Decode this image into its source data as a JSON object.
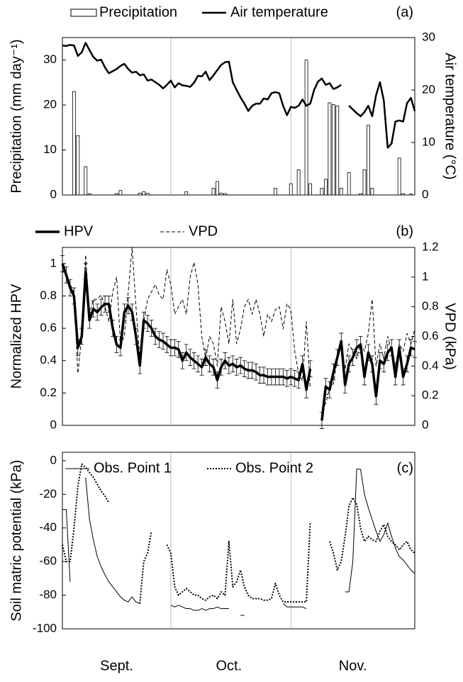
{
  "chart_data": [
    {
      "type": "line",
      "panel_label": "(a)",
      "ylabel": "Precipitation (mm day⁻¹)",
      "y2label": "Air temperature (°C)",
      "xlim": [
        0,
        91
      ],
      "xgrid": [
        28,
        59
      ],
      "ylim": [
        0,
        35
      ],
      "yticks": [
        0,
        10,
        20,
        30
      ],
      "y2lim": [
        0,
        30
      ],
      "y2ticks": [
        0,
        10,
        20,
        30
      ],
      "x": [
        0,
        1,
        2,
        3,
        4,
        5,
        6,
        7,
        8,
        9,
        10,
        11,
        12,
        13,
        14,
        15,
        16,
        17,
        18,
        19,
        20,
        21,
        22,
        23,
        24,
        25,
        26,
        27,
        28,
        29,
        30,
        31,
        32,
        33,
        34,
        35,
        36,
        37,
        38,
        39,
        40,
        41,
        42,
        43,
        44,
        45,
        46,
        47,
        48,
        49,
        50,
        51,
        52,
        53,
        54,
        55,
        56,
        57,
        58,
        59,
        60,
        61,
        62,
        63,
        64,
        65,
        66,
        67,
        68,
        69,
        70,
        71,
        72,
        73,
        74,
        75,
        76,
        77,
        78,
        79,
        80,
        81,
        82,
        83,
        84,
        85,
        86,
        87,
        88,
        89,
        90,
        91
      ],
      "series": [
        {
          "name": "Precipitation",
          "type": "bar",
          "color": "#000000",
          "fill": "#ffffff",
          "x": [
            3,
            4,
            6,
            7,
            14,
            15,
            20,
            21,
            22,
            32,
            39,
            40,
            41,
            42,
            55,
            59,
            61,
            63,
            64,
            67,
            68,
            69,
            70,
            71,
            72,
            74,
            77,
            78,
            79,
            80,
            87,
            88,
            90
          ],
          "values": [
            23,
            13.2,
            6.3,
            0.3,
            0.3,
            1,
            0.4,
            0.7,
            0.4,
            0.7,
            1.5,
            3,
            0.4,
            0.3,
            1.5,
            2.5,
            5.6,
            30,
            2.5,
            1.5,
            3.5,
            20.5,
            20.1,
            19.8,
            1.5,
            5,
            0.3,
            5.6,
            15.5,
            1.5,
            8.2,
            0.3,
            0.2
          ]
        },
        {
          "name": "Air temperature",
          "type": "line",
          "axis": "y2",
          "color": "#000000",
          "width": 2.5,
          "dash": "solid",
          "values": [
            28.5,
            28.4,
            28.6,
            28.5,
            26.5,
            27.2,
            29,
            27.6,
            26.3,
            25.6,
            25.8,
            24.3,
            23.2,
            23.6,
            24.0,
            24.6,
            25.0,
            24.0,
            23.3,
            23.5,
            22.8,
            23.0,
            21.8,
            22.0,
            21.5,
            21.0,
            20.3,
            21.0,
            21.8,
            20.5,
            21.3,
            20.9,
            20.8,
            20.6,
            21.4,
            22.7,
            22.6,
            23.5,
            21.9,
            22.8,
            23.8,
            24.8,
            25.3,
            25.4,
            21.5,
            20.0,
            18.6,
            17.4,
            16.0,
            17.0,
            17.4,
            17.4,
            18.4,
            18.2,
            19.4,
            19.6,
            19.4,
            17.0,
            15.2,
            16.8,
            16.6,
            17.0,
            18.2,
            17.0,
            17.4,
            20.0,
            21.6,
            22.2,
            21.0,
            21.3,
            20.2,
            20.5,
            21.0,
            null,
            17.0,
            16.3,
            15.6,
            15.0,
            15.8,
            17.0,
            15.0,
            19.0,
            21.5,
            18.0,
            9.0,
            9.8,
            14.0,
            14.2,
            14.0,
            17.5,
            18.5,
            16.0
          ]
        }
      ]
    },
    {
      "type": "line",
      "panel_label": "(b)",
      "ylabel": "Normalized HPV",
      "y2label": "VPD (kPa)",
      "xlim": [
        0,
        91
      ],
      "xgrid": [
        28,
        59
      ],
      "ylim": [
        0,
        1.1
      ],
      "yticks": [
        0,
        0.2,
        0.4,
        0.6,
        0.8,
        1
      ],
      "y2lim": [
        0,
        1.2
      ],
      "y2ticks": [
        0,
        0.2,
        0.4,
        0.6,
        0.8,
        1,
        1.2
      ],
      "x": [
        0,
        1,
        2,
        3,
        4,
        5,
        6,
        7,
        8,
        9,
        10,
        11,
        12,
        13,
        14,
        15,
        16,
        17,
        18,
        19,
        20,
        21,
        22,
        23,
        24,
        25,
        26,
        27,
        28,
        29,
        30,
        31,
        32,
        33,
        34,
        35,
        36,
        37,
        38,
        39,
        40,
        41,
        42,
        43,
        44,
        45,
        46,
        47,
        48,
        49,
        50,
        51,
        52,
        53,
        54,
        55,
        56,
        57,
        58,
        59,
        60,
        61,
        62,
        63,
        64,
        65,
        66,
        67,
        68,
        69,
        70,
        71,
        72,
        73,
        74,
        75,
        76,
        77,
        78,
        79,
        80,
        81,
        82,
        83,
        84,
        85,
        86,
        87,
        88,
        89,
        90,
        91
      ],
      "series": [
        {
          "name": "HPV",
          "type": "line",
          "color": "#000000",
          "width": 3.5,
          "dash": "solid",
          "values": [
            1.0,
            0.93,
            0.85,
            0.8,
            0.48,
            0.55,
            0.95,
            0.65,
            0.72,
            0.7,
            0.73,
            0.75,
            0.75,
            0.6,
            0.5,
            0.48,
            0.7,
            0.74,
            0.7,
            0.55,
            0.37,
            0.65,
            0.63,
            0.6,
            0.55,
            0.53,
            0.52,
            0.5,
            0.48,
            0.48,
            0.47,
            0.4,
            0.45,
            0.42,
            0.4,
            0.38,
            0.36,
            0.42,
            0.38,
            0.36,
            0.28,
            0.36,
            0.4,
            0.37,
            0.38,
            0.36,
            0.37,
            0.35,
            0.34,
            0.34,
            0.33,
            0.31,
            0.31,
            0.3,
            0.3,
            0.3,
            0.3,
            0.3,
            0.29,
            0.3,
            0.29,
            0.28,
            0.38,
            0.22,
            0.35,
            null,
            null,
            0.03,
            0.24,
            0.22,
            0.33,
            0.42,
            0.52,
            0.25,
            0.38,
            0.42,
            0.48,
            0.5,
            0.3,
            0.45,
            0.38,
            0.18,
            0.4,
            0.38,
            0.45,
            0.48,
            0.3,
            0.48,
            0.3,
            0.38,
            0.48,
            0.47
          ],
          "errors": [
            0.05,
            0.05,
            0.05,
            0.05,
            0.05,
            0.05,
            0.05,
            0.05,
            0.05,
            0.05,
            0.05,
            0.05,
            0.05,
            0.05,
            0.05,
            0.05,
            0.05,
            0.05,
            0.05,
            0.05,
            0.05,
            0.05,
            0.05,
            0.05,
            0.05,
            0.05,
            0.05,
            0.05,
            0.05,
            0.05,
            0.05,
            0.05,
            0.05,
            0.05,
            0.05,
            0.05,
            0.05,
            0.05,
            0.05,
            0.05,
            0.05,
            0.05,
            0.05,
            0.05,
            0.05,
            0.05,
            0.05,
            0.05,
            0.05,
            0.05,
            0.05,
            0.05,
            0.05,
            0.05,
            0.05,
            0.05,
            0.05,
            0.05,
            0.05,
            0.05,
            0.05,
            0.05,
            0.05,
            0.05,
            0.05,
            null,
            null,
            0.05,
            0.05,
            0.05,
            0.05,
            0.05,
            0.05,
            0.05,
            0.05,
            0.05,
            0.05,
            0.05,
            0.05,
            0.05,
            0.05,
            0.05,
            0.05,
            0.05,
            0.05,
            0.05,
            0.05,
            0.05,
            0.05,
            0.05,
            0.05,
            0.05
          ]
        },
        {
          "name": "VPD",
          "type": "line",
          "axis": "y2",
          "color": "#000000",
          "width": 1,
          "dash": "dashed",
          "values": [
            1.05,
            1.0,
            0.95,
            0.9,
            0.35,
            0.6,
            1.15,
            0.75,
            0.85,
            0.85,
            0.88,
            0.8,
            0.7,
            0.9,
            1.0,
            0.55,
            0.6,
            0.9,
            1.2,
            0.8,
            0.45,
            0.7,
            0.85,
            0.9,
            0.95,
            0.88,
            0.85,
            1.05,
            0.95,
            0.75,
            0.8,
            0.85,
            0.75,
            1.0,
            1.1,
            0.95,
            0.6,
            0.45,
            0.6,
            0.55,
            0.4,
            0.8,
            0.7,
            0.55,
            0.85,
            0.55,
            0.65,
            0.8,
            0.85,
            0.75,
            0.85,
            0.75,
            0.6,
            0.75,
            0.7,
            0.78,
            0.8,
            0.65,
            0.82,
            0.78,
            0.5,
            0.35,
            0.3,
            0.7,
            0.25,
            null,
            null,
            0.1,
            0.15,
            0.25,
            0.28,
            0.45,
            0.55,
            0.38,
            0.55,
            0.5,
            0.45,
            0.55,
            0.5,
            0.62,
            0.85,
            0.4,
            0.55,
            0.45,
            0.6,
            0.5,
            0.4,
            0.55,
            0.5,
            0.62,
            0.55,
            0.65
          ]
        }
      ]
    },
    {
      "type": "line",
      "panel_label": "(c)",
      "ylabel": "Soil matric potential (kPa)",
      "xlim": [
        0,
        91
      ],
      "xgrid": [
        28,
        59
      ],
      "ylim": [
        -100,
        5
      ],
      "yticks": [
        -100,
        -80,
        -60,
        -40,
        -20,
        0
      ],
      "xticks": [
        {
          "value": 14,
          "label": "Sept."
        },
        {
          "value": 43,
          "label": "Oct."
        },
        {
          "value": 75,
          "label": "Nov."
        }
      ],
      "x": [
        0,
        1,
        2,
        3,
        4,
        5,
        6,
        7,
        8,
        9,
        10,
        11,
        12,
        13,
        14,
        15,
        16,
        17,
        18,
        19,
        20,
        21,
        22,
        23,
        24,
        25,
        26,
        27,
        28,
        29,
        30,
        31,
        32,
        33,
        34,
        35,
        36,
        37,
        38,
        39,
        40,
        41,
        42,
        43,
        44,
        45,
        46,
        47,
        48,
        49,
        50,
        51,
        52,
        53,
        54,
        55,
        56,
        57,
        58,
        59,
        60,
        61,
        62,
        63,
        64,
        65,
        66,
        67,
        68,
        69,
        70,
        71,
        72,
        73,
        74,
        75,
        76,
        77,
        78,
        79,
        80,
        81,
        82,
        83,
        84,
        85,
        86,
        87,
        88,
        89,
        90,
        91
      ],
      "series": [
        {
          "name": "Obs. Point 1",
          "type": "line",
          "color": "#000000",
          "width": 1,
          "dash": "solid",
          "values": [
            -29,
            -29,
            -72,
            null,
            null,
            null,
            -10,
            -35,
            -47,
            -57,
            -63,
            -68,
            -72,
            -75,
            -78,
            -81,
            -83,
            -84,
            -81,
            -84,
            -85,
            null,
            null,
            null,
            null,
            null,
            null,
            null,
            -86,
            -87,
            -86,
            -87,
            -88,
            -88,
            -89,
            -89,
            -88,
            -89,
            -88,
            -88,
            -87,
            -88,
            -88,
            -88,
            null,
            null,
            -92,
            -92,
            null,
            null,
            null,
            null,
            null,
            null,
            null,
            null,
            null,
            -85,
            -87,
            -87,
            -87,
            -87,
            -87,
            -88,
            null,
            null,
            null,
            null,
            null,
            null,
            null,
            null,
            null,
            -78,
            -78,
            -60,
            -5,
            -5,
            -20,
            -28,
            -35,
            -42,
            -48,
            -44,
            -37,
            -45,
            -52,
            -57,
            -59,
            -62,
            -65,
            -67
          ]
        },
        {
          "name": "Obs. Point 2",
          "type": "line",
          "color": "#000000",
          "width": 2,
          "dash": "dotted",
          "values": [
            -50,
            -60,
            -60,
            -40,
            -15,
            -2,
            -4,
            -7,
            -10,
            -14,
            -18,
            -21,
            -25,
            null,
            null,
            null,
            null,
            null,
            null,
            null,
            -85,
            -60,
            -55,
            -42,
            null,
            null,
            null,
            -50,
            -55,
            -75,
            -80,
            -78,
            -76,
            -78,
            -80,
            -80,
            -82,
            -83,
            -81,
            -80,
            -82,
            -78,
            -80,
            -48,
            -75,
            -72,
            -65,
            -75,
            -80,
            -82,
            -82,
            -82,
            -83,
            -83,
            -82,
            -73,
            -80,
            -84,
            -84,
            -84,
            -84,
            -84,
            -84,
            -84,
            -37,
            null,
            null,
            null,
            null,
            -48,
            -55,
            -65,
            -60,
            -45,
            -27,
            -22,
            -26,
            -40,
            -48,
            -45,
            -47,
            -48,
            -42,
            -38,
            -45,
            -48,
            -50,
            -53,
            -50,
            -48,
            -53,
            -55
          ]
        }
      ]
    }
  ]
}
